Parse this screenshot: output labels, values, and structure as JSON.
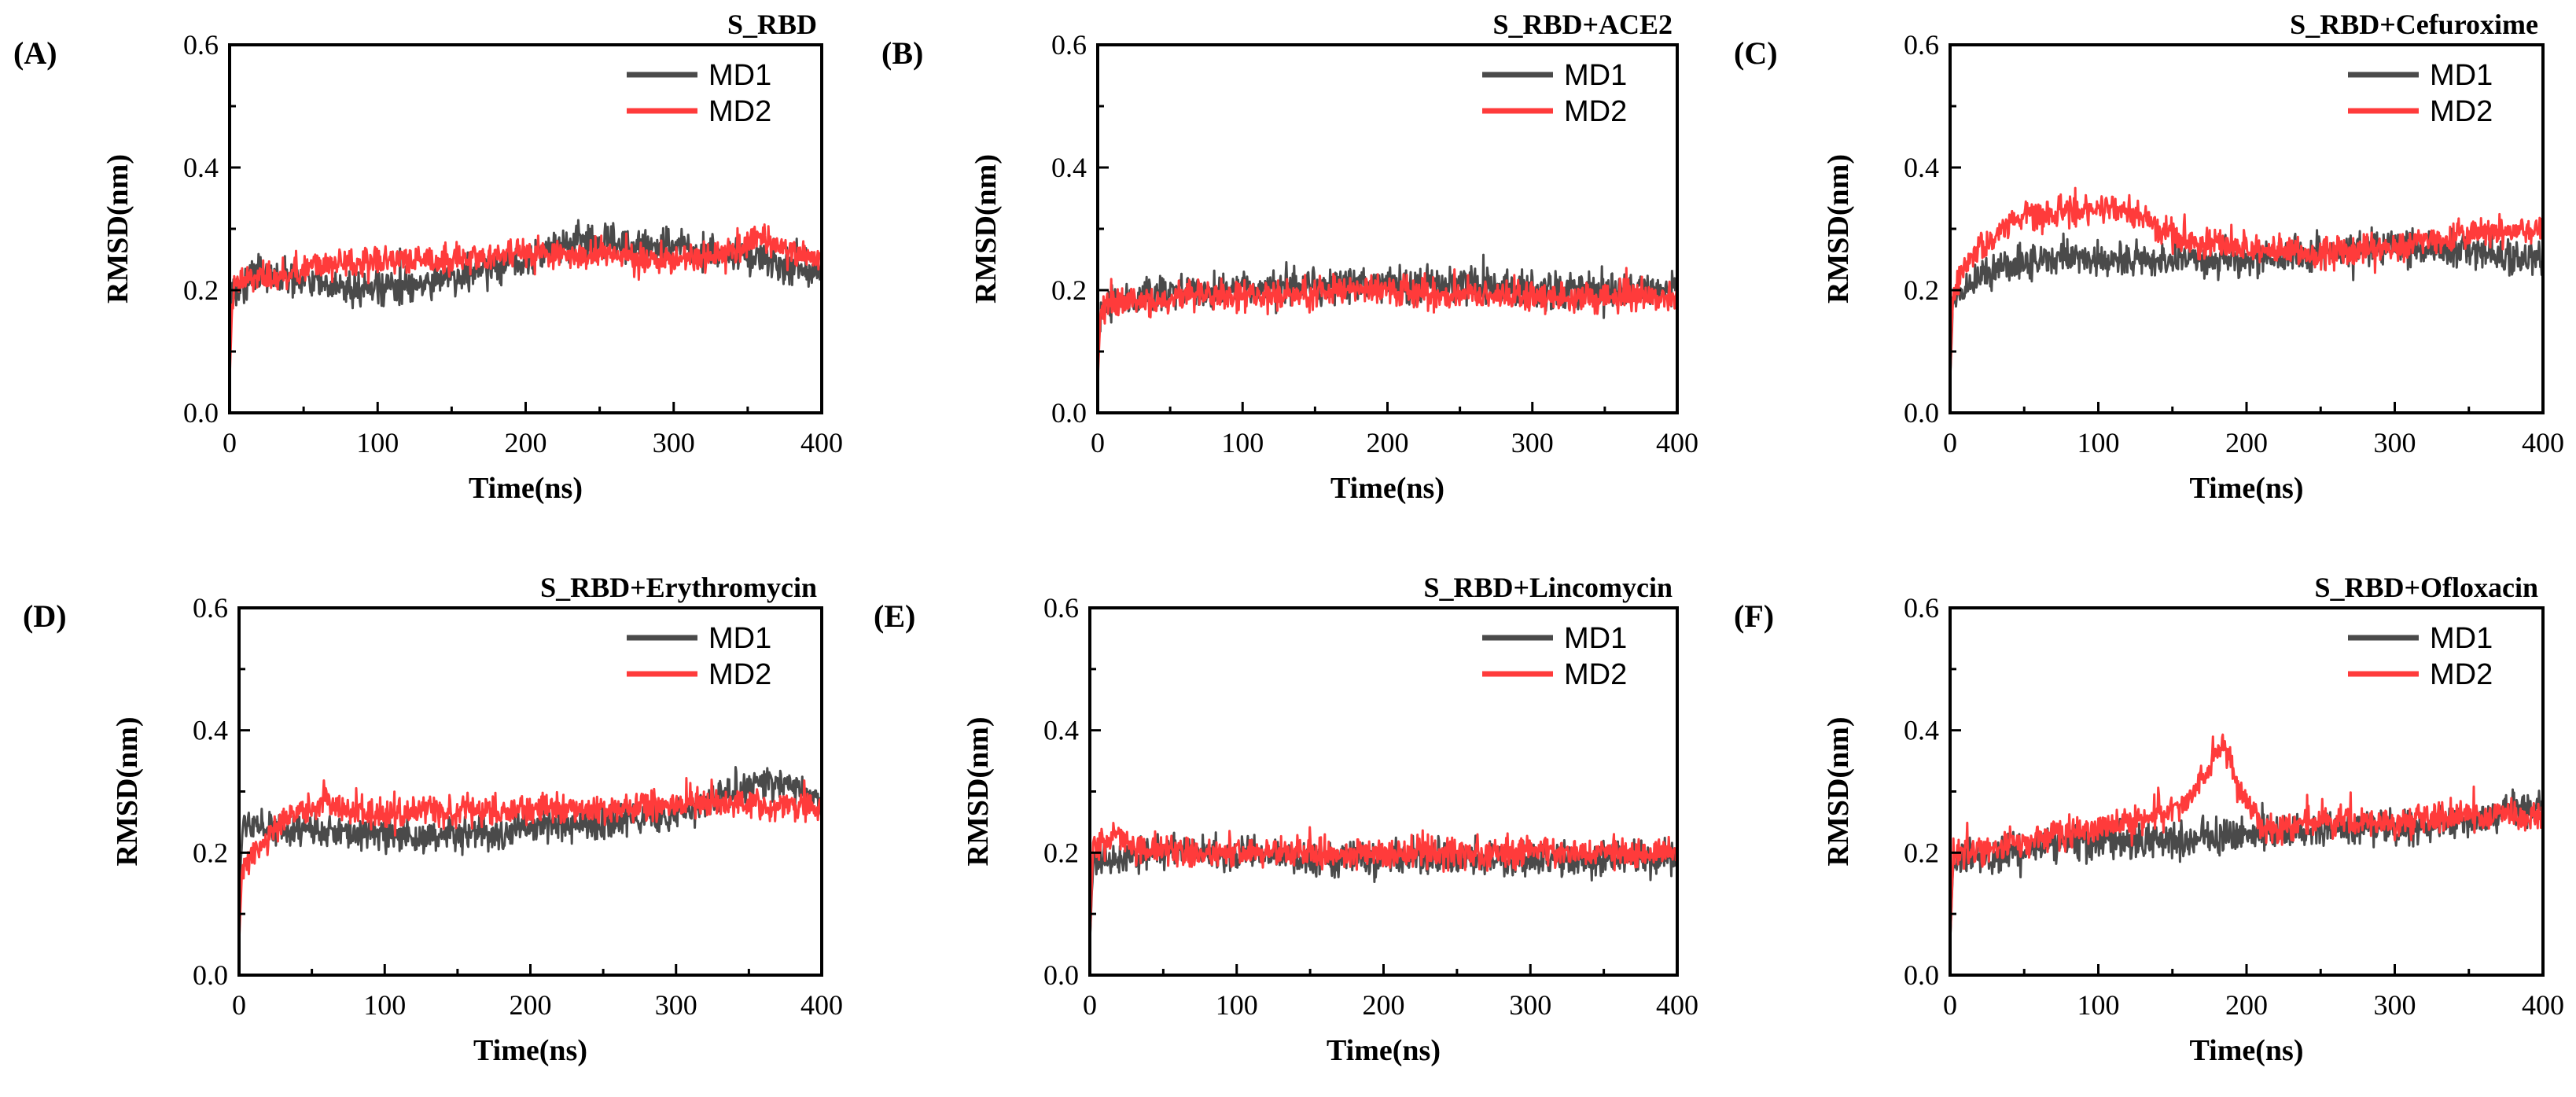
{
  "colors": {
    "MD1": "#4a4a4a",
    "MD2": "#ff3b3b",
    "axis": "#000000"
  },
  "chart_data": [
    {
      "type": "line",
      "label": "(A)",
      "title": "S_RBD",
      "xlabel": "Time(ns)",
      "ylabel": "RMSD(nm)",
      "xlim": [
        0,
        400
      ],
      "ylim": [
        0,
        0.6
      ],
      "xticks": [
        "0",
        "100",
        "200",
        "300",
        "400"
      ],
      "yticks": [
        "0.0",
        "0.2",
        "0.4",
        "0.6"
      ],
      "legend": "top-right",
      "grid": false,
      "series": [
        {
          "name": "MD1",
          "x": [
            0,
            2,
            10,
            20,
            40,
            60,
            80,
            100,
            130,
            160,
            200,
            220,
            250,
            280,
            300,
            330,
            360,
            380,
            400
          ],
          "y": [
            0.1,
            0.2,
            0.21,
            0.23,
            0.22,
            0.21,
            0.2,
            0.2,
            0.21,
            0.23,
            0.25,
            0.27,
            0.28,
            0.27,
            0.27,
            0.26,
            0.25,
            0.24,
            0.23
          ]
        },
        {
          "name": "MD2",
          "x": [
            0,
            2,
            10,
            20,
            40,
            60,
            80,
            100,
            130,
            160,
            200,
            220,
            250,
            280,
            300,
            330,
            360,
            380,
            400
          ],
          "y": [
            0.05,
            0.2,
            0.22,
            0.22,
            0.23,
            0.24,
            0.24,
            0.25,
            0.25,
            0.25,
            0.26,
            0.26,
            0.26,
            0.25,
            0.25,
            0.26,
            0.28,
            0.26,
            0.25
          ]
        }
      ]
    },
    {
      "type": "line",
      "label": "(B)",
      "title": "S_RBD+ACE2",
      "xlabel": "Time(ns)",
      "ylabel": "RMSD(nm)",
      "xlim": [
        0,
        400
      ],
      "ylim": [
        0,
        0.6
      ],
      "xticks": [
        "0",
        "100",
        "200",
        "300",
        "400"
      ],
      "yticks": [
        "0.0",
        "0.2",
        "0.4",
        "0.6"
      ],
      "legend": "top-right",
      "grid": false,
      "series": [
        {
          "name": "MD1",
          "x": [
            0,
            2,
            10,
            30,
            60,
            100,
            150,
            200,
            250,
            300,
            350,
            400
          ],
          "y": [
            0.1,
            0.17,
            0.18,
            0.19,
            0.2,
            0.2,
            0.21,
            0.21,
            0.21,
            0.2,
            0.2,
            0.2
          ]
        },
        {
          "name": "MD2",
          "x": [
            0,
            2,
            10,
            30,
            60,
            100,
            150,
            200,
            250,
            300,
            350,
            400
          ],
          "y": [
            0.05,
            0.17,
            0.18,
            0.18,
            0.19,
            0.19,
            0.2,
            0.2,
            0.19,
            0.19,
            0.19,
            0.19
          ]
        }
      ]
    },
    {
      "type": "line",
      "label": "(C)",
      "title": "S_RBD+Cefuroxime",
      "xlabel": "Time(ns)",
      "ylabel": "RMSD(nm)",
      "xlim": [
        0,
        400
      ],
      "ylim": [
        0,
        0.6
      ],
      "xticks": [
        "0",
        "100",
        "200",
        "300",
        "400"
      ],
      "yticks": [
        "0.0",
        "0.2",
        "0.4",
        "0.6"
      ],
      "legend": "top-right",
      "grid": false,
      "series": [
        {
          "name": "MD1",
          "x": [
            0,
            2,
            10,
            20,
            40,
            60,
            80,
            100,
            130,
            160,
            200,
            250,
            300,
            350,
            400
          ],
          "y": [
            0.05,
            0.18,
            0.2,
            0.22,
            0.24,
            0.25,
            0.25,
            0.25,
            0.25,
            0.25,
            0.25,
            0.26,
            0.27,
            0.26,
            0.25
          ]
        },
        {
          "name": "MD2",
          "x": [
            0,
            2,
            10,
            20,
            30,
            40,
            60,
            80,
            100,
            120,
            140,
            160,
            200,
            250,
            300,
            350,
            400
          ],
          "y": [
            0.05,
            0.2,
            0.24,
            0.27,
            0.29,
            0.31,
            0.32,
            0.33,
            0.33,
            0.33,
            0.3,
            0.28,
            0.27,
            0.26,
            0.27,
            0.29,
            0.3
          ]
        }
      ]
    },
    {
      "type": "line",
      "label": "(D)",
      "title": "S_RBD+Erythromycin",
      "xlabel": "Time(ns)",
      "ylabel": "RMSD(nm)",
      "xlim": [
        0,
        400
      ],
      "ylim": [
        0,
        0.6
      ],
      "xticks": [
        "0",
        "100",
        "200",
        "300",
        "400"
      ],
      "yticks": [
        "0.0",
        "0.2",
        "0.4",
        "0.6"
      ],
      "legend": "top-right",
      "grid": false,
      "series": [
        {
          "name": "MD1",
          "x": [
            0,
            2,
            10,
            30,
            60,
            100,
            150,
            200,
            250,
            300,
            340,
            360,
            380,
            400
          ],
          "y": [
            0.1,
            0.24,
            0.24,
            0.24,
            0.23,
            0.23,
            0.23,
            0.24,
            0.25,
            0.26,
            0.3,
            0.32,
            0.31,
            0.28
          ]
        },
        {
          "name": "MD2",
          "x": [
            0,
            2,
            10,
            20,
            30,
            40,
            60,
            100,
            150,
            200,
            250,
            300,
            350,
            400
          ],
          "y": [
            0.05,
            0.17,
            0.2,
            0.22,
            0.26,
            0.27,
            0.28,
            0.26,
            0.27,
            0.27,
            0.27,
            0.28,
            0.28,
            0.27
          ]
        }
      ]
    },
    {
      "type": "line",
      "label": "(E)",
      "title": "S_RBD+Lincomycin",
      "xlabel": "Time(ns)",
      "ylabel": "RMSD(nm)",
      "xlim": [
        0,
        400
      ],
      "ylim": [
        0,
        0.6
      ],
      "xticks": [
        "0",
        "100",
        "200",
        "300",
        "400"
      ],
      "yticks": [
        "0.0",
        "0.2",
        "0.4",
        "0.6"
      ],
      "legend": "top-right",
      "grid": false,
      "series": [
        {
          "name": "MD1",
          "x": [
            0,
            2,
            10,
            30,
            60,
            100,
            150,
            200,
            250,
            300,
            350,
            400
          ],
          "y": [
            0.05,
            0.18,
            0.19,
            0.2,
            0.2,
            0.2,
            0.19,
            0.19,
            0.19,
            0.19,
            0.19,
            0.19
          ]
        },
        {
          "name": "MD2",
          "x": [
            0,
            2,
            10,
            20,
            30,
            60,
            100,
            150,
            200,
            250,
            300,
            350,
            400
          ],
          "y": [
            0.05,
            0.2,
            0.21,
            0.23,
            0.21,
            0.2,
            0.2,
            0.2,
            0.2,
            0.2,
            0.2,
            0.2,
            0.2
          ]
        }
      ]
    },
    {
      "type": "line",
      "label": "(F)",
      "title": "S_RBD+Ofloxacin",
      "xlabel": "Time(ns)",
      "ylabel": "RMSD(nm)",
      "xlim": [
        0,
        400
      ],
      "ylim": [
        0,
        0.6
      ],
      "xticks": [
        "0",
        "100",
        "200",
        "300",
        "400"
      ],
      "yticks": [
        "0.0",
        "0.2",
        "0.4",
        "0.6"
      ],
      "legend": "top-right",
      "grid": false,
      "series": [
        {
          "name": "MD1",
          "x": [
            0,
            2,
            10,
            30,
            60,
            100,
            150,
            200,
            250,
            300,
            350,
            380,
            400
          ],
          "y": [
            0.05,
            0.18,
            0.19,
            0.2,
            0.21,
            0.22,
            0.22,
            0.23,
            0.24,
            0.24,
            0.25,
            0.27,
            0.27
          ]
        },
        {
          "name": "MD2",
          "x": [
            0,
            2,
            10,
            30,
            60,
            100,
            140,
            160,
            175,
            185,
            195,
            210,
            250,
            300,
            350,
            400
          ],
          "y": [
            0.05,
            0.19,
            0.2,
            0.21,
            0.22,
            0.24,
            0.26,
            0.28,
            0.34,
            0.38,
            0.3,
            0.24,
            0.25,
            0.25,
            0.26,
            0.26
          ]
        }
      ]
    }
  ]
}
